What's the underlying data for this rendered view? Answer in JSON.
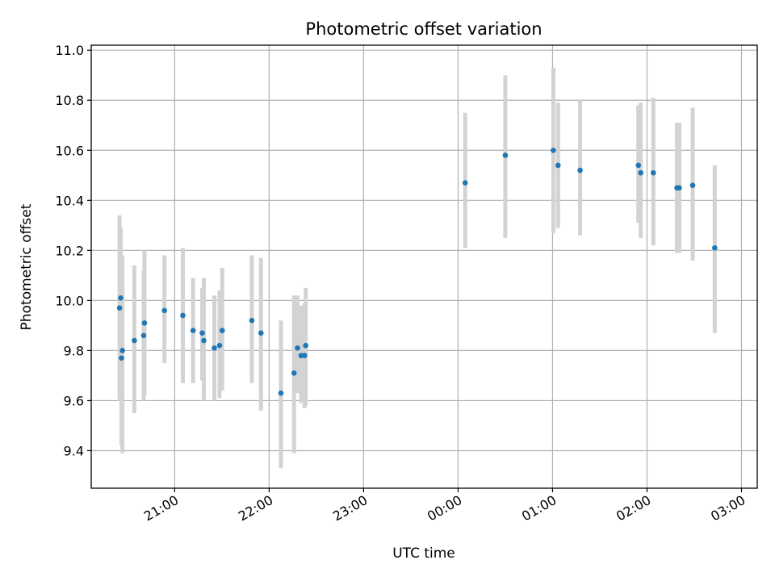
{
  "chart_data": {
    "type": "scatter",
    "title": "Photometric offset variation",
    "xlabel": "UTC time",
    "ylabel": "Photometric offset",
    "x_unit": "minutes relative to 00:00 UTC",
    "xlim": [
      -233,
      190
    ],
    "ylim": [
      9.25,
      11.02
    ],
    "x_ticks": [
      {
        "value": -180,
        "label": "21:00"
      },
      {
        "value": -120,
        "label": "22:00"
      },
      {
        "value": -60,
        "label": "23:00"
      },
      {
        "value": 0,
        "label": "00:00"
      },
      {
        "value": 60,
        "label": "01:00"
      },
      {
        "value": 120,
        "label": "02:00"
      },
      {
        "value": 180,
        "label": "03:00"
      }
    ],
    "y_ticks": [
      {
        "value": 9.4,
        "label": "9.4"
      },
      {
        "value": 9.6,
        "label": "9.6"
      },
      {
        "value": 9.8,
        "label": "9.8"
      },
      {
        "value": 10.0,
        "label": "10.0"
      },
      {
        "value": 10.2,
        "label": "10.2"
      },
      {
        "value": 10.4,
        "label": "10.4"
      },
      {
        "value": 10.6,
        "label": "10.6"
      },
      {
        "value": 10.8,
        "label": "10.8"
      },
      {
        "value": 11.0,
        "label": "11.0"
      }
    ],
    "grid": true,
    "marker_color": "#1f77b4",
    "errorbar_color": "#d3d3d3",
    "points": [
      {
        "x": -215.0,
        "y": 9.97,
        "lo": 9.6,
        "hi": 10.34
      },
      {
        "x": -214.3,
        "y": 10.01,
        "lo": 9.72,
        "hi": 10.29
      },
      {
        "x": -213.8,
        "y": 9.77,
        "lo": 9.42,
        "hi": 10.12
      },
      {
        "x": -213.2,
        "y": 9.8,
        "lo": 9.39,
        "hi": 10.18
      },
      {
        "x": -205.6,
        "y": 9.84,
        "lo": 9.55,
        "hi": 10.14
      },
      {
        "x": -199.7,
        "y": 9.86,
        "lo": 9.6,
        "hi": 10.12
      },
      {
        "x": -199.2,
        "y": 9.91,
        "lo": 9.62,
        "hi": 10.2
      },
      {
        "x": -186.5,
        "y": 9.96,
        "lo": 9.75,
        "hi": 10.18
      },
      {
        "x": -174.8,
        "y": 9.94,
        "lo": 9.67,
        "hi": 10.21
      },
      {
        "x": -168.3,
        "y": 9.88,
        "lo": 9.67,
        "hi": 10.09
      },
      {
        "x": -162.5,
        "y": 9.87,
        "lo": 9.68,
        "hi": 10.05
      },
      {
        "x": -161.5,
        "y": 9.84,
        "lo": 9.6,
        "hi": 10.09
      },
      {
        "x": -154.8,
        "y": 9.81,
        "lo": 9.6,
        "hi": 10.02
      },
      {
        "x": -151.5,
        "y": 9.82,
        "lo": 9.61,
        "hi": 10.04
      },
      {
        "x": -149.8,
        "y": 9.88,
        "lo": 9.64,
        "hi": 10.13
      },
      {
        "x": -131.0,
        "y": 9.92,
        "lo": 9.67,
        "hi": 10.18
      },
      {
        "x": -125.2,
        "y": 9.87,
        "lo": 9.56,
        "hi": 10.17
      },
      {
        "x": -112.5,
        "y": 9.63,
        "lo": 9.33,
        "hi": 9.92
      },
      {
        "x": -104.2,
        "y": 9.71,
        "lo": 9.39,
        "hi": 10.02
      },
      {
        "x": -102.0,
        "y": 9.81,
        "lo": 9.63,
        "hi": 10.02
      },
      {
        "x": -99.7,
        "y": 9.78,
        "lo": 9.59,
        "hi": 9.98
      },
      {
        "x": -97.5,
        "y": 9.78,
        "lo": 9.57,
        "hi": 9.99
      },
      {
        "x": -96.8,
        "y": 9.82,
        "lo": 9.58,
        "hi": 10.05
      },
      {
        "x": 4.5,
        "y": 10.47,
        "lo": 10.21,
        "hi": 10.75
      },
      {
        "x": 30.0,
        "y": 10.58,
        "lo": 10.25,
        "hi": 10.9
      },
      {
        "x": 60.5,
        "y": 10.6,
        "lo": 10.27,
        "hi": 10.93
      },
      {
        "x": 63.5,
        "y": 10.54,
        "lo": 10.29,
        "hi": 10.79
      },
      {
        "x": 77.5,
        "y": 10.52,
        "lo": 10.26,
        "hi": 10.8
      },
      {
        "x": 114.5,
        "y": 10.54,
        "lo": 10.31,
        "hi": 10.78
      },
      {
        "x": 116.0,
        "y": 10.51,
        "lo": 10.25,
        "hi": 10.79
      },
      {
        "x": 124.0,
        "y": 10.51,
        "lo": 10.22,
        "hi": 10.81
      },
      {
        "x": 139.0,
        "y": 10.45,
        "lo": 10.19,
        "hi": 10.71
      },
      {
        "x": 140.5,
        "y": 10.45,
        "lo": 10.19,
        "hi": 10.71
      },
      {
        "x": 149.0,
        "y": 10.46,
        "lo": 10.16,
        "hi": 10.77
      },
      {
        "x": 163.0,
        "y": 10.21,
        "lo": 9.87,
        "hi": 10.54
      }
    ]
  }
}
